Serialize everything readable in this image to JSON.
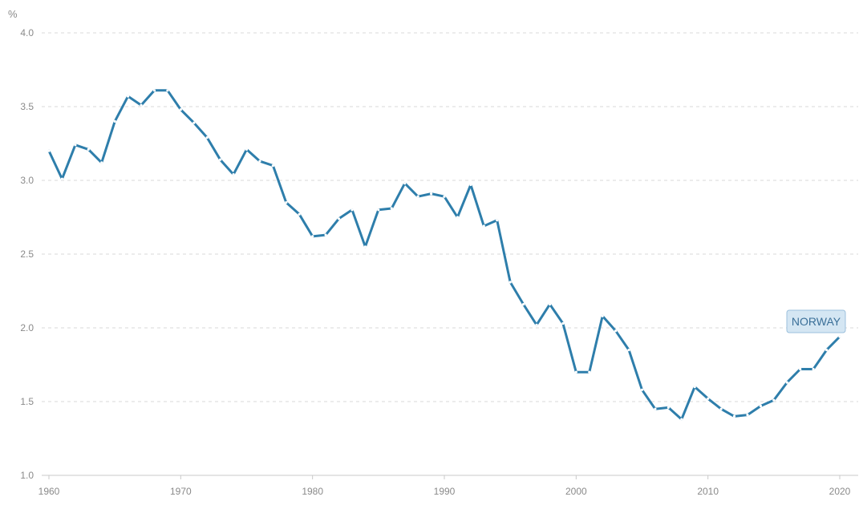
{
  "colors": {
    "series": "#2e7eab",
    "point": "#ffffff"
  },
  "chart_data": {
    "type": "line",
    "title": "",
    "xlabel": "",
    "ylabel": "%",
    "xlim": [
      1960,
      2020
    ],
    "ylim": [
      1.0,
      4.0
    ],
    "x_ticks": [
      1960,
      1970,
      1980,
      1990,
      2000,
      2010,
      2020
    ],
    "y_ticks": [
      "1.0",
      "1.5",
      "2.0",
      "2.5",
      "3.0",
      "3.5",
      "4.0"
    ],
    "grid": "horizontal dashed",
    "series": [
      {
        "name": "NORWAY",
        "x": [
          1960,
          1961,
          1962,
          1963,
          1964,
          1965,
          1966,
          1967,
          1968,
          1969,
          1970,
          1971,
          1972,
          1973,
          1974,
          1975,
          1976,
          1977,
          1978,
          1979,
          1980,
          1981,
          1982,
          1983,
          1984,
          1985,
          1986,
          1987,
          1988,
          1989,
          1990,
          1991,
          1992,
          1993,
          1994,
          1995,
          1996,
          1997,
          1998,
          1999,
          2000,
          2001,
          2002,
          2003,
          2004,
          2005,
          2006,
          2007,
          2008,
          2009,
          2010,
          2011,
          2012,
          2013,
          2014,
          2015,
          2016,
          2017,
          2018,
          2019,
          2020
        ],
        "values": [
          3.2,
          3.01,
          3.24,
          3.21,
          3.12,
          3.4,
          3.57,
          3.51,
          3.61,
          3.61,
          3.48,
          3.39,
          3.29,
          3.14,
          3.04,
          3.21,
          3.13,
          3.1,
          2.85,
          2.77,
          2.62,
          2.63,
          2.74,
          2.8,
          2.55,
          2.8,
          2.81,
          2.98,
          2.89,
          2.91,
          2.89,
          2.75,
          2.97,
          2.69,
          2.73,
          2.31,
          2.16,
          2.02,
          2.16,
          2.03,
          1.7,
          1.7,
          2.08,
          1.98,
          1.85,
          1.58,
          1.45,
          1.46,
          1.38,
          1.6,
          1.52,
          1.45,
          1.4,
          1.41,
          1.47,
          1.51,
          1.63,
          1.72,
          1.72,
          1.85,
          1.94
        ]
      }
    ]
  }
}
